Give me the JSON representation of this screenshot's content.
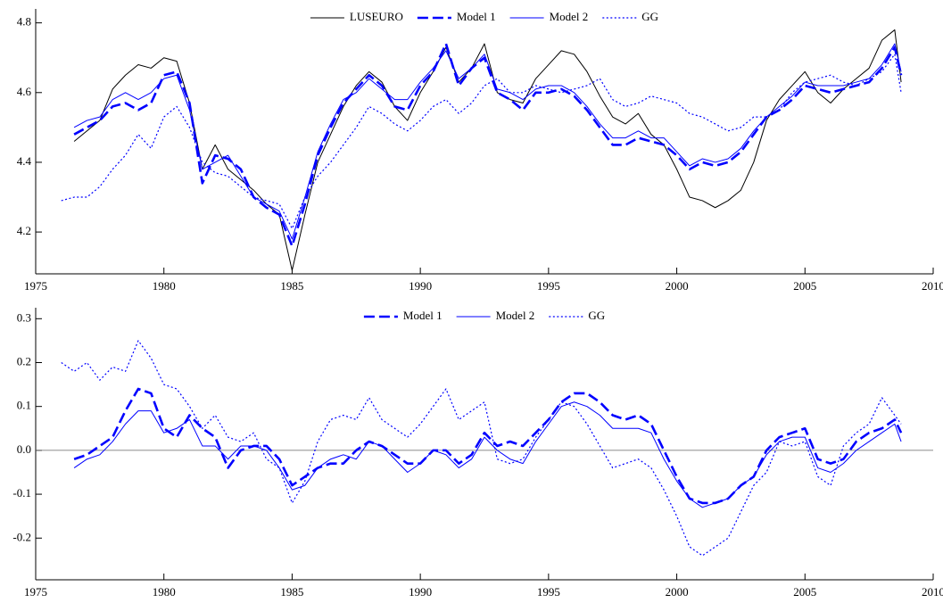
{
  "chart_data": [
    {
      "type": "line",
      "x": [
        1976,
        1976.5,
        1977,
        1977.5,
        1978,
        1978.5,
        1979,
        1979.5,
        1980,
        1980.5,
        1981,
        1981.5,
        1982,
        1982.5,
        1983,
        1983.5,
        1984,
        1984.5,
        1985,
        1985.5,
        1986,
        1986.5,
        1987,
        1987.5,
        1988,
        1988.5,
        1989,
        1989.5,
        1990,
        1990.5,
        1991,
        1991.5,
        1992,
        1992.5,
        1993,
        1993.5,
        1994,
        1994.5,
        1995,
        1995.5,
        1996,
        1996.5,
        1997,
        1997.5,
        1998,
        1998.5,
        1999,
        1999.5,
        2000,
        2000.5,
        2001,
        2001.5,
        2002,
        2002.5,
        2003,
        2003.5,
        2004,
        2004.5,
        2005,
        2005.5,
        2006,
        2006.5,
        2007,
        2007.5,
        2008,
        2008.5,
        2008.75
      ],
      "series": [
        {
          "name": "LUSEURO",
          "color": "#000000",
          "linestyle": "solid",
          "values": [
            null,
            4.46,
            4.49,
            4.52,
            4.61,
            4.65,
            4.68,
            4.67,
            4.7,
            4.69,
            4.57,
            4.38,
            4.45,
            4.38,
            4.35,
            4.32,
            4.28,
            4.25,
            4.09,
            4.25,
            4.4,
            4.48,
            4.56,
            4.62,
            4.66,
            4.63,
            4.56,
            4.52,
            4.6,
            4.66,
            4.73,
            4.63,
            4.67,
            4.74,
            4.6,
            4.58,
            4.57,
            4.64,
            4.68,
            4.72,
            4.71,
            4.66,
            4.59,
            4.53,
            4.51,
            4.54,
            4.48,
            4.45,
            4.38,
            4.3,
            4.29,
            4.27,
            4.29,
            4.32,
            4.4,
            4.52,
            4.58,
            4.62,
            4.66,
            4.6,
            4.57,
            4.61,
            4.64,
            4.67,
            4.75,
            4.78,
            4.63
          ]
        },
        {
          "name": "Model 1",
          "color": "#0000ff",
          "linestyle": "dashed",
          "values": [
            null,
            4.48,
            4.5,
            4.52,
            4.56,
            4.57,
            4.55,
            4.57,
            4.65,
            4.66,
            4.57,
            4.34,
            4.42,
            4.41,
            4.38,
            4.3,
            4.27,
            4.25,
            4.16,
            4.28,
            4.42,
            4.5,
            4.57,
            4.61,
            4.65,
            4.62,
            4.56,
            4.55,
            4.62,
            4.66,
            4.74,
            4.62,
            4.67,
            4.7,
            4.6,
            4.58,
            4.55,
            4.6,
            4.6,
            4.61,
            4.59,
            4.55,
            4.5,
            4.45,
            4.45,
            4.47,
            4.46,
            4.45,
            4.42,
            4.38,
            4.4,
            4.39,
            4.4,
            4.43,
            4.48,
            4.53,
            4.55,
            4.58,
            4.62,
            4.61,
            4.6,
            4.61,
            4.62,
            4.63,
            4.67,
            4.73,
            4.65
          ]
        },
        {
          "name": "Model 2",
          "color": "#0000ff",
          "linestyle": "solid",
          "values": [
            null,
            4.5,
            4.52,
            4.53,
            4.58,
            4.6,
            4.58,
            4.6,
            4.64,
            4.65,
            4.55,
            4.38,
            4.4,
            4.42,
            4.36,
            4.3,
            4.28,
            4.26,
            4.18,
            4.3,
            4.43,
            4.51,
            4.58,
            4.6,
            4.64,
            4.61,
            4.58,
            4.58,
            4.63,
            4.67,
            4.72,
            4.64,
            4.67,
            4.71,
            4.61,
            4.6,
            4.58,
            4.61,
            4.62,
            4.62,
            4.6,
            4.56,
            4.51,
            4.47,
            4.47,
            4.49,
            4.47,
            4.47,
            4.43,
            4.39,
            4.41,
            4.4,
            4.41,
            4.44,
            4.49,
            4.53,
            4.56,
            4.59,
            4.63,
            4.62,
            4.62,
            4.62,
            4.63,
            4.64,
            4.68,
            4.74,
            4.66
          ]
        },
        {
          "name": "GG",
          "color": "#0000ff",
          "linestyle": "dotted",
          "values": [
            4.29,
            4.3,
            4.3,
            4.33,
            4.38,
            4.42,
            4.48,
            4.44,
            4.53,
            4.56,
            4.5,
            4.4,
            4.37,
            4.36,
            4.33,
            4.3,
            4.29,
            4.28,
            4.21,
            4.3,
            4.36,
            4.4,
            4.45,
            4.5,
            4.56,
            4.54,
            4.51,
            4.49,
            4.52,
            4.56,
            4.58,
            4.54,
            4.57,
            4.62,
            4.64,
            4.6,
            4.6,
            4.62,
            4.61,
            4.6,
            4.61,
            4.62,
            4.64,
            4.58,
            4.56,
            4.57,
            4.59,
            4.58,
            4.57,
            4.54,
            4.53,
            4.51,
            4.49,
            4.5,
            4.53,
            4.53,
            4.55,
            4.6,
            4.63,
            4.64,
            4.65,
            4.63,
            4.62,
            4.64,
            4.66,
            4.71,
            4.6
          ]
        }
      ],
      "xlim": [
        1975,
        2010
      ],
      "xticks": [
        1975,
        1980,
        1985,
        1990,
        1995,
        2000,
        2005,
        2010
      ],
      "ylim": [
        4.08,
        4.84
      ],
      "yticks": [
        4.2,
        4.4,
        4.6,
        4.8
      ],
      "legend": "upper center"
    },
    {
      "type": "line",
      "x": [
        1976,
        1976.5,
        1977,
        1977.5,
        1978,
        1978.5,
        1979,
        1979.5,
        1980,
        1980.5,
        1981,
        1981.5,
        1982,
        1982.5,
        1983,
        1983.5,
        1984,
        1984.5,
        1985,
        1985.5,
        1986,
        1986.5,
        1987,
        1987.5,
        1988,
        1988.5,
        1989,
        1989.5,
        1990,
        1990.5,
        1991,
        1991.5,
        1992,
        1992.5,
        1993,
        1993.5,
        1994,
        1994.5,
        1995,
        1995.5,
        1996,
        1996.5,
        1997,
        1997.5,
        1998,
        1998.5,
        1999,
        1999.5,
        2000,
        2000.5,
        2001,
        2001.5,
        2002,
        2002.5,
        2003,
        2003.5,
        2004,
        2004.5,
        2005,
        2005.5,
        2006,
        2006.5,
        2007,
        2007.5,
        2008,
        2008.5,
        2008.75
      ],
      "series": [
        {
          "name": "Model 1",
          "color": "#0000ff",
          "linestyle": "dashed",
          "values": [
            null,
            -0.02,
            -0.01,
            0.01,
            0.03,
            0.09,
            0.14,
            0.13,
            0.05,
            0.03,
            0.08,
            0.05,
            0.03,
            -0.04,
            0.0,
            0.01,
            0.01,
            -0.02,
            -0.08,
            -0.06,
            -0.04,
            -0.03,
            -0.03,
            0.0,
            0.02,
            0.01,
            -0.01,
            -0.03,
            -0.03,
            0.0,
            0.0,
            -0.03,
            -0.01,
            0.04,
            0.01,
            0.02,
            0.01,
            0.04,
            0.07,
            0.11,
            0.13,
            0.13,
            0.11,
            0.08,
            0.07,
            0.08,
            0.06,
            0.0,
            -0.06,
            -0.11,
            -0.12,
            -0.12,
            -0.11,
            -0.08,
            -0.06,
            0.0,
            0.03,
            0.04,
            0.05,
            -0.02,
            -0.03,
            -0.02,
            0.02,
            0.04,
            0.05,
            0.07,
            0.04
          ]
        },
        {
          "name": "Model 2",
          "color": "#0000ff",
          "linestyle": "solid",
          "values": [
            null,
            -0.04,
            -0.02,
            -0.01,
            0.02,
            0.06,
            0.09,
            0.09,
            0.04,
            0.05,
            0.07,
            0.01,
            0.01,
            -0.02,
            0.01,
            0.01,
            0.0,
            -0.04,
            -0.09,
            -0.08,
            -0.04,
            -0.02,
            -0.01,
            -0.02,
            0.02,
            0.01,
            -0.02,
            -0.05,
            -0.03,
            0.0,
            -0.01,
            -0.04,
            -0.02,
            0.03,
            0.0,
            -0.02,
            -0.03,
            0.02,
            0.06,
            0.1,
            0.11,
            0.1,
            0.08,
            0.05,
            0.05,
            0.05,
            0.04,
            -0.02,
            -0.07,
            -0.11,
            -0.13,
            -0.12,
            -0.11,
            -0.08,
            -0.06,
            -0.01,
            0.02,
            0.03,
            0.03,
            -0.04,
            -0.05,
            -0.03,
            0.0,
            0.02,
            0.04,
            0.06,
            0.02
          ]
        },
        {
          "name": "GG",
          "color": "#0000ff",
          "linestyle": "dotted",
          "values": [
            0.2,
            0.18,
            0.2,
            0.16,
            0.19,
            0.18,
            0.25,
            0.21,
            0.15,
            0.14,
            0.1,
            0.05,
            0.08,
            0.03,
            0.02,
            0.04,
            -0.02,
            -0.04,
            -0.12,
            -0.07,
            0.02,
            0.07,
            0.08,
            0.07,
            0.12,
            0.07,
            0.05,
            0.03,
            0.06,
            0.1,
            0.14,
            0.07,
            0.09,
            0.11,
            -0.02,
            -0.03,
            -0.02,
            0.03,
            0.07,
            0.11,
            0.1,
            0.06,
            0.01,
            -0.04,
            -0.03,
            -0.02,
            -0.04,
            -0.09,
            -0.15,
            -0.22,
            -0.24,
            -0.22,
            -0.2,
            -0.14,
            -0.08,
            -0.05,
            0.02,
            0.01,
            0.02,
            -0.06,
            -0.08,
            0.01,
            0.04,
            0.06,
            0.12,
            0.08,
            0.06
          ]
        }
      ],
      "xlim": [
        1975,
        2010
      ],
      "xticks": [
        1975,
        1980,
        1985,
        1990,
        1995,
        2000,
        2005,
        2010
      ],
      "ylim": [
        -0.295,
        0.325
      ],
      "yticks": [
        -0.2,
        -0.1,
        {
          "value": 0,
          "label": "0.0"
        },
        0.1,
        0.2,
        0.3
      ],
      "hline": 0,
      "legend": "upper center"
    }
  ]
}
